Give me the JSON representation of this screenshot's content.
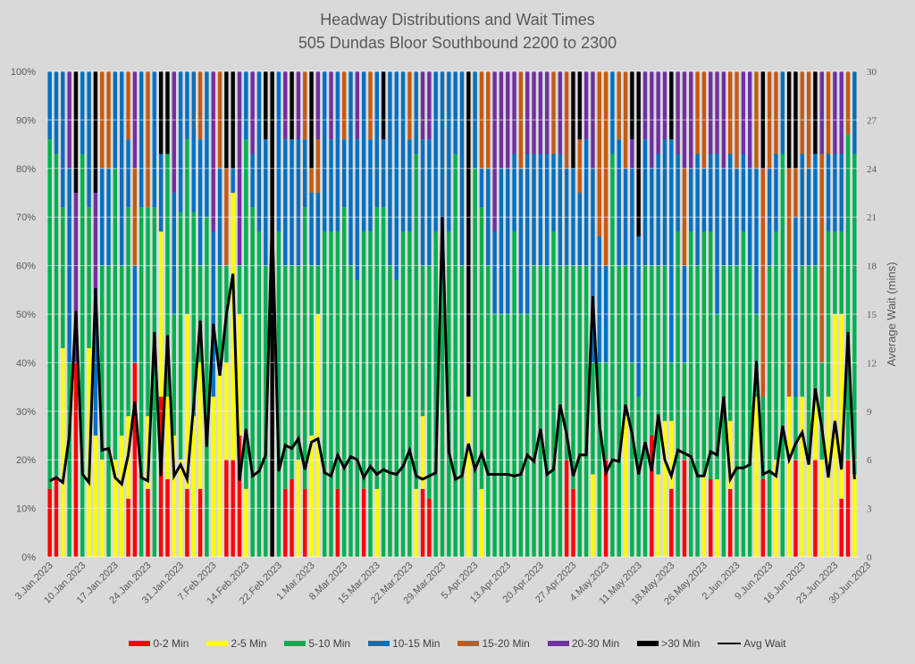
{
  "chart_data": {
    "type": "bar",
    "stacked": true,
    "normalized": true,
    "title": "Headway Distributions and Wait Times",
    "subtitle": "505 Dundas  Bloor Southbound 2200 to 2300",
    "xlabel": "",
    "ylabel_left": "",
    "ylabel_right": "Average Wait (mins)",
    "ylim_left": [
      0,
      100
    ],
    "ylim_right": [
      0,
      30
    ],
    "left_ticks": [
      "0%",
      "10%",
      "20%",
      "30%",
      "40%",
      "50%",
      "60%",
      "70%",
      "80%",
      "90%",
      "100%"
    ],
    "right_ticks": [
      "0",
      "3",
      "6",
      "9",
      "12",
      "15",
      "18",
      "21",
      "24",
      "27",
      "30"
    ],
    "grid": true,
    "legend_position": "bottom",
    "x_tick_labels": [
      "3.Jan.2023",
      "10.Jan.2023",
      "17.Jan.2023",
      "24.Jan.2023",
      "31.Jan.2023",
      "7.Feb.2023",
      "14.Feb.2023",
      "22.Feb.2023",
      "1.Mar.2023",
      "8.Mar.2023",
      "15.Mar.2023",
      "22.Mar.2023",
      "29.Mar.2023",
      "5.Apr.2023",
      "13.Apr.2023",
      "20.Apr.2023",
      "27.Apr.2023",
      "4.May.2023",
      "11.May.2023",
      "18.May.2023",
      "26.May.2023",
      "2.Jun.2023",
      "9.Jun.2023",
      "16.Jun.2023",
      "23.Jun.2023",
      "30.Jun.2023"
    ],
    "x_tick_every": 5,
    "series_names": [
      "0-2 Min",
      "2-5 Min",
      "5-10 Min",
      "10-15 Min",
      "15-20 Min",
      "20-30 Min",
      ">30 Min"
    ],
    "series_colors": [
      "#ff0000",
      "#ffff00",
      "#00b050",
      "#0070c0",
      "#c55a11",
      "#7030a0",
      "#000000"
    ],
    "line_series": {
      "name": "Avg Wait",
      "color": "#000000"
    },
    "bars_cumulative_percent": [
      [
        14,
        14,
        86,
        100,
        100,
        100,
        100
      ],
      [
        16,
        16,
        83,
        100,
        100,
        100,
        100
      ],
      [
        0,
        43,
        72,
        100,
        100,
        100,
        100
      ],
      [
        0,
        0,
        40,
        80,
        80,
        100,
        100
      ],
      [
        40,
        40,
        40,
        40,
        40,
        75,
        100
      ],
      [
        0,
        0,
        83,
        100,
        100,
        100,
        100
      ],
      [
        0,
        43,
        72,
        100,
        100,
        100,
        100
      ],
      [
        0,
        25,
        25,
        50,
        50,
        75,
        100
      ],
      [
        0,
        20,
        60,
        80,
        100,
        100,
        100
      ],
      [
        0,
        0,
        60,
        80,
        100,
        100,
        100
      ],
      [
        0,
        20,
        80,
        100,
        100,
        100,
        100
      ],
      [
        0,
        25,
        60,
        100,
        100,
        100,
        100
      ],
      [
        12,
        29,
        72,
        86,
        100,
        100,
        100
      ],
      [
        40,
        40,
        40,
        60,
        80,
        100,
        100
      ],
      [
        0,
        0,
        72,
        100,
        100,
        100,
        100
      ],
      [
        14,
        29,
        72,
        72,
        100,
        100,
        100
      ],
      [
        0,
        0,
        72,
        100,
        100,
        100,
        100
      ],
      [
        33,
        67,
        67,
        83,
        83,
        83,
        100
      ],
      [
        16,
        33,
        83,
        83,
        83,
        83,
        100
      ],
      [
        0,
        25,
        50,
        75,
        75,
        100,
        100
      ],
      [
        0,
        20,
        71,
        100,
        100,
        100,
        100
      ],
      [
        14,
        50,
        86,
        100,
        100,
        100,
        100
      ],
      [
        0,
        29,
        71,
        100,
        100,
        100,
        100
      ],
      [
        14,
        40,
        60,
        86,
        100,
        100,
        100
      ],
      [
        0,
        0,
        70,
        100,
        100,
        100,
        100
      ],
      [
        0,
        33,
        33,
        67,
        67,
        100,
        100
      ],
      [
        0,
        40,
        60,
        80,
        100,
        100,
        100
      ],
      [
        20,
        40,
        60,
        60,
        80,
        80,
        100
      ],
      [
        20,
        75,
        75,
        80,
        80,
        80,
        100
      ],
      [
        25,
        50,
        60,
        60,
        60,
        100,
        100
      ],
      [
        0,
        14,
        86,
        100,
        100,
        100,
        100
      ],
      [
        0,
        0,
        72,
        83,
        83,
        100,
        100
      ],
      [
        0,
        0,
        67,
        100,
        100,
        100,
        100
      ],
      [
        0,
        0,
        60,
        86,
        86,
        86,
        100
      ],
      [
        0,
        0,
        0,
        0,
        0,
        0,
        100
      ],
      [
        0,
        0,
        67,
        100,
        100,
        100,
        100
      ],
      [
        14,
        14,
        60,
        86,
        86,
        100,
        100
      ],
      [
        16,
        16,
        60,
        86,
        86,
        86,
        100
      ],
      [
        0,
        20,
        60,
        86,
        86,
        100,
        100
      ],
      [
        14,
        14,
        72,
        86,
        100,
        100,
        100
      ],
      [
        0,
        25,
        60,
        75,
        80,
        80,
        100
      ],
      [
        0,
        50,
        60,
        75,
        86,
        100,
        100
      ],
      [
        0,
        0,
        67,
        100,
        100,
        100,
        100
      ],
      [
        0,
        0,
        67,
        86,
        86,
        100,
        100
      ],
      [
        14,
        14,
        67,
        100,
        100,
        100,
        100
      ],
      [
        0,
        0,
        72,
        86,
        100,
        100,
        100
      ],
      [
        0,
        0,
        60,
        100,
        100,
        100,
        100
      ],
      [
        0,
        0,
        57,
        86,
        86,
        100,
        100
      ],
      [
        14,
        14,
        67,
        100,
        100,
        100,
        100
      ],
      [
        0,
        0,
        67,
        86,
        100,
        100,
        100
      ],
      [
        0,
        14,
        72,
        100,
        100,
        100,
        100
      ],
      [
        0,
        0,
        72,
        86,
        86,
        86,
        100
      ],
      [
        0,
        0,
        60,
        100,
        100,
        100,
        100
      ],
      [
        0,
        0,
        57,
        100,
        100,
        100,
        100
      ],
      [
        0,
        0,
        67,
        100,
        100,
        100,
        100
      ],
      [
        0,
        0,
        67,
        86,
        100,
        100,
        100
      ],
      [
        0,
        14,
        83,
        100,
        100,
        100,
        100
      ],
      [
        14,
        29,
        60,
        86,
        86,
        100,
        100
      ],
      [
        12,
        12,
        60,
        86,
        86,
        100,
        100
      ],
      [
        0,
        0,
        67,
        100,
        100,
        100,
        100
      ],
      [
        0,
        0,
        57,
        100,
        100,
        100,
        100
      ],
      [
        0,
        0,
        67,
        100,
        100,
        100,
        100
      ],
      [
        0,
        0,
        83,
        100,
        100,
        100,
        100
      ],
      [
        0,
        0,
        60,
        100,
        100,
        100,
        100
      ],
      [
        0,
        33,
        33,
        33,
        33,
        33,
        100
      ],
      [
        0,
        0,
        80,
        100,
        100,
        100,
        100
      ],
      [
        0,
        14,
        72,
        80,
        100,
        100,
        100
      ],
      [
        0,
        0,
        60,
        80,
        100,
        100,
        100
      ],
      [
        0,
        0,
        50,
        67,
        67,
        100,
        100
      ],
      [
        0,
        0,
        50,
        80,
        80,
        100,
        100
      ],
      [
        0,
        0,
        50,
        80,
        80,
        100,
        100
      ],
      [
        0,
        0,
        67,
        83,
        83,
        100,
        100
      ],
      [
        0,
        0,
        50,
        80,
        100,
        100,
        100
      ],
      [
        0,
        0,
        50,
        83,
        83,
        100,
        100
      ],
      [
        0,
        0,
        60,
        83,
        83,
        100,
        100
      ],
      [
        0,
        0,
        60,
        83,
        83,
        100,
        100
      ],
      [
        0,
        0,
        60,
        83,
        83,
        100,
        100
      ],
      [
        0,
        0,
        67,
        83,
        100,
        100,
        100
      ],
      [
        0,
        0,
        60,
        83,
        83,
        100,
        100
      ],
      [
        20,
        20,
        60,
        80,
        100,
        100,
        100
      ],
      [
        14,
        14,
        60,
        80,
        80,
        80,
        100
      ],
      [
        0,
        0,
        60,
        75,
        86,
        86,
        100
      ],
      [
        0,
        0,
        60,
        86,
        86,
        100,
        100
      ],
      [
        0,
        17,
        40,
        80,
        80,
        100,
        100
      ],
      [
        0,
        0,
        40,
        66,
        100,
        100,
        100
      ],
      [
        20,
        20,
        40,
        60,
        100,
        100,
        100
      ],
      [
        0,
        0,
        83,
        100,
        100,
        100,
        100
      ],
      [
        0,
        0,
        60,
        86,
        100,
        100,
        100
      ],
      [
        0,
        29,
        60,
        80,
        100,
        100,
        100
      ],
      [
        0,
        0,
        40,
        80,
        80,
        86,
        100
      ],
      [
        0,
        0,
        33,
        66,
        66,
        66,
        100
      ],
      [
        0,
        0,
        60,
        86,
        86,
        100,
        100
      ],
      [
        25,
        25,
        60,
        80,
        80,
        100,
        100
      ],
      [
        0,
        17,
        60,
        83,
        83,
        100,
        100
      ],
      [
        0,
        28,
        60,
        86,
        86,
        100,
        100
      ],
      [
        14,
        28,
        40,
        86,
        86,
        86,
        100
      ],
      [
        0,
        0,
        67,
        83,
        83,
        100,
        100
      ],
      [
        20,
        20,
        40,
        60,
        80,
        100,
        100
      ],
      [
        0,
        0,
        67,
        80,
        80,
        100,
        100
      ],
      [
        0,
        0,
        60,
        83,
        100,
        100,
        100
      ],
      [
        0,
        17,
        67,
        80,
        100,
        100,
        100
      ],
      [
        16,
        16,
        67,
        83,
        83,
        100,
        100
      ],
      [
        0,
        16,
        50,
        83,
        83,
        100,
        100
      ],
      [
        0,
        0,
        60,
        80,
        80,
        100,
        100
      ],
      [
        14,
        28,
        60,
        83,
        100,
        100,
        100
      ],
      [
        0,
        0,
        60,
        80,
        100,
        100,
        100
      ],
      [
        0,
        0,
        67,
        83,
        83,
        100,
        100
      ],
      [
        0,
        0,
        60,
        80,
        80,
        100,
        100
      ],
      [
        0,
        33,
        50,
        80,
        100,
        100,
        100
      ],
      [
        16,
        16,
        33,
        33,
        80,
        80,
        100
      ],
      [
        0,
        0,
        60,
        80,
        100,
        100,
        100
      ],
      [
        0,
        20,
        67,
        83,
        100,
        100,
        100
      ],
      [
        0,
        0,
        83,
        100,
        100,
        100,
        100
      ],
      [
        0,
        33,
        33,
        33,
        80,
        80,
        100
      ],
      [
        20,
        20,
        33,
        70,
        80,
        80,
        100
      ],
      [
        0,
        33,
        60,
        83,
        100,
        100,
        100
      ],
      [
        0,
        20,
        60,
        80,
        100,
        100,
        100
      ],
      [
        20,
        33,
        60,
        83,
        83,
        83,
        100
      ],
      [
        0,
        20,
        40,
        40,
        83,
        100,
        100
      ],
      [
        0,
        33,
        67,
        83,
        100,
        100,
        100
      ],
      [
        0,
        50,
        67,
        83,
        83,
        100,
        100
      ],
      [
        12,
        50,
        67,
        83,
        83,
        100,
        100
      ],
      [
        20,
        20,
        87,
        87,
        100,
        100,
        100
      ],
      [
        0,
        17,
        83,
        100,
        100,
        100,
        100
      ]
    ],
    "avg_wait": [
      4.7,
      4.9,
      4.6,
      7.5,
      15.2,
      5.1,
      4.6,
      16.6,
      6.6,
      6.7,
      4.9,
      4.5,
      6.3,
      9.6,
      4.9,
      4.7,
      13.9,
      5.0,
      13.7,
      5.0,
      5.7,
      4.8,
      9.4,
      14.6,
      6.8,
      14.4,
      11.2,
      15.0,
      17.5,
      4.7,
      7.9,
      5.0,
      5.3,
      6.3,
      21.0,
      5.3,
      6.9,
      6.7,
      7.3,
      5.4,
      7.1,
      7.3,
      5.2,
      5.0,
      6.3,
      5.5,
      6.2,
      6.0,
      4.9,
      5.6,
      5.1,
      5.4,
      5.2,
      5.1,
      5.6,
      6.6,
      5.0,
      4.8,
      5.0,
      5.2,
      21.0,
      6.5,
      4.8,
      5.0,
      7.0,
      5.4,
      6.4,
      5.1,
      5.1,
      5.1,
      5.1,
      5.0,
      5.1,
      6.3,
      5.9,
      7.9,
      5.1,
      5.4,
      9.4,
      7.6,
      5.0,
      6.3,
      6.3,
      16.1,
      8.2,
      5.2,
      6.0,
      5.9,
      9.4,
      7.6,
      5.1,
      7.1,
      5.3,
      8.8,
      6.0,
      5.0,
      6.6,
      6.4,
      6.2,
      5.0,
      5.0,
      6.5,
      6.3,
      9.9,
      4.8,
      5.5,
      5.5,
      5.7,
      12.1,
      5.1,
      5.3,
      5.0,
      8.1,
      6.0,
      7.0,
      7.7,
      5.7,
      10.4,
      8.0,
      4.9,
      8.4,
      5.4,
      13.9,
      4.8
    ]
  },
  "legend": {
    "items": [
      {
        "label": "0-2 Min",
        "color": "#ff0000"
      },
      {
        "label": "2-5 Min",
        "color": "#ffff00"
      },
      {
        "label": "5-10 Min",
        "color": "#00b050"
      },
      {
        "label": "10-15 Min",
        "color": "#0070c0"
      },
      {
        "label": "15-20 Min",
        "color": "#c55a11"
      },
      {
        "label": "20-30 Min",
        "color": "#7030a0"
      },
      {
        "label": ">30 Min",
        "color": "#000000"
      }
    ],
    "line_label": "Avg Wait"
  }
}
